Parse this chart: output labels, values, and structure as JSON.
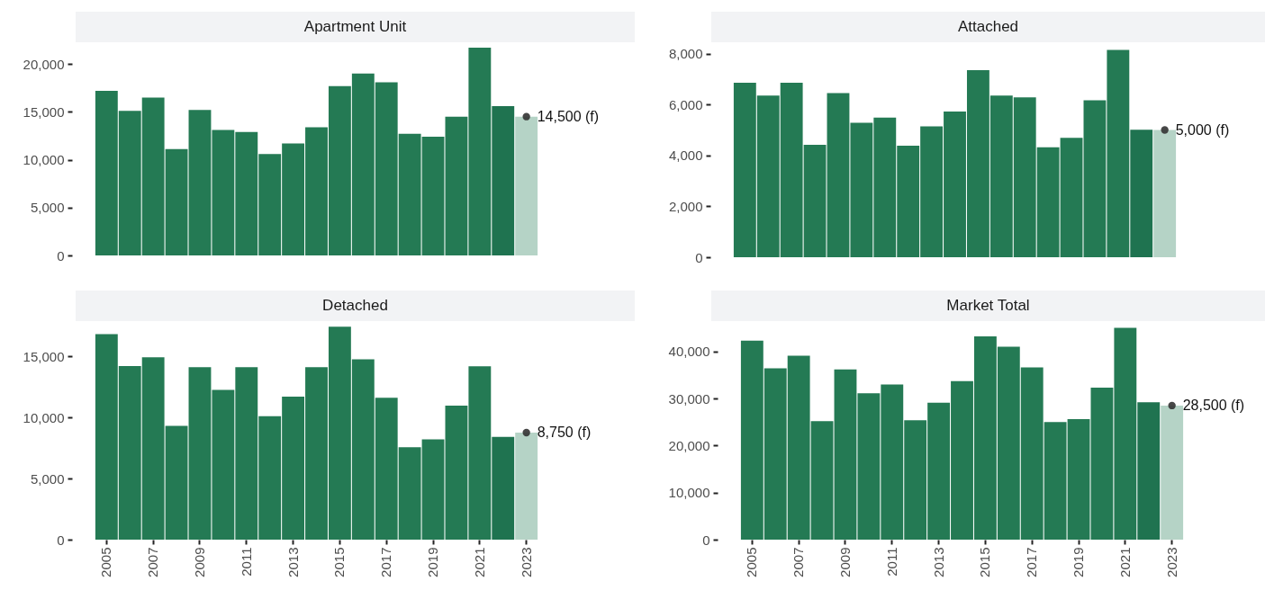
{
  "chart_data": [
    {
      "type": "bar",
      "title": "Apartment Unit",
      "categories": [
        "2005",
        null,
        "2007",
        null,
        "2009",
        null,
        "2011",
        null,
        "2013",
        null,
        "2015",
        null,
        "2017",
        null,
        "2019",
        null,
        "2021",
        null,
        "2023"
      ],
      "ylim": [
        0,
        21800
      ],
      "yticks": [
        {
          "value": 0,
          "label": "0"
        },
        {
          "value": 5000,
          "label": "5,000"
        },
        {
          "value": 10000,
          "label": "10,000"
        },
        {
          "value": 15000,
          "label": "15,000"
        },
        {
          "value": 20000,
          "label": "20,000"
        }
      ],
      "tick_labels": "y",
      "marker": "circle",
      "series": [
        {
          "colors": [
            "#247a54",
            "#247a54",
            "#247a54",
            "#247a54",
            "#247a54",
            "#247a54",
            "#247a54",
            "#247a54",
            "#247a54",
            "#247a54",
            "#247a54",
            "#247a54",
            "#247a54",
            "#247a54",
            "#247a54",
            "#247a54",
            "#247a54",
            "#1f7350",
            "#b5d3c6"
          ],
          "values": [
            17200,
            15100,
            16500,
            11100,
            15200,
            13100,
            12900,
            10600,
            11700,
            13400,
            17700,
            19000,
            18100,
            12700,
            12400,
            14500,
            21700,
            15600,
            14500
          ]
        },
        {
          "type": "scatter",
          "color": "#333333",
          "values": [
            null,
            null,
            null,
            null,
            null,
            null,
            null,
            null,
            null,
            null,
            null,
            null,
            null,
            null,
            null,
            null,
            null,
            null,
            14500
          ],
          "value_labels": [
            null,
            null,
            null,
            null,
            null,
            null,
            null,
            null,
            null,
            null,
            null,
            null,
            null,
            null,
            null,
            null,
            null,
            null,
            "14,500 (f)"
          ]
        }
      ]
    },
    {
      "type": "bar",
      "title": "Attached",
      "categories": [
        "2005",
        null,
        "2007",
        null,
        "2009",
        null,
        "2011",
        null,
        "2013",
        null,
        "2015",
        null,
        "2017",
        null,
        "2019",
        null,
        "2021",
        null,
        "2023"
      ],
      "ylim": [
        0,
        8200
      ],
      "yticks": [
        {
          "value": 0,
          "label": "0"
        },
        {
          "value": 2000,
          "label": "2,000"
        },
        {
          "value": 4000,
          "label": "4,000"
        },
        {
          "value": 6000,
          "label": "6,000"
        },
        {
          "value": 8000,
          "label": "8,000"
        }
      ],
      "tick_labels": "y",
      "marker": "circle",
      "series": [
        {
          "colors": [
            "#247a54",
            "#247a54",
            "#247a54",
            "#247a54",
            "#247a54",
            "#247a54",
            "#247a54",
            "#247a54",
            "#247a54",
            "#247a54",
            "#247a54",
            "#247a54",
            "#247a54",
            "#247a54",
            "#247a54",
            "#247a54",
            "#247a54",
            "#1f7350",
            "#b5d3c6"
          ],
          "values": [
            6860,
            6350,
            6860,
            4420,
            6450,
            5280,
            5490,
            4380,
            5140,
            5730,
            7350,
            6350,
            6280,
            4320,
            4690,
            6170,
            8150,
            5010,
            5000
          ]
        },
        {
          "type": "scatter",
          "color": "#333333",
          "values": [
            null,
            null,
            null,
            null,
            null,
            null,
            null,
            null,
            null,
            null,
            null,
            null,
            null,
            null,
            null,
            null,
            null,
            null,
            5000
          ],
          "value_labels": [
            null,
            null,
            null,
            null,
            null,
            null,
            null,
            null,
            null,
            null,
            null,
            null,
            null,
            null,
            null,
            null,
            null,
            null,
            "5,000 (f)"
          ]
        }
      ]
    },
    {
      "type": "bar",
      "title": "Detached",
      "categories": [
        "2005",
        null,
        "2007",
        null,
        "2009",
        null,
        "2011",
        null,
        "2013",
        null,
        "2015",
        null,
        "2017",
        null,
        "2019",
        null,
        "2021",
        null,
        "2023"
      ],
      "ylim": [
        0,
        17500
      ],
      "yticks": [
        {
          "value": 0,
          "label": "0"
        },
        {
          "value": 5000,
          "label": "5,000"
        },
        {
          "value": 10000,
          "label": "10,000"
        },
        {
          "value": 15000,
          "label": "15,000"
        }
      ],
      "marker": "circle",
      "series": [
        {
          "colors": [
            "#247a54",
            "#247a54",
            "#247a54",
            "#247a54",
            "#247a54",
            "#247a54",
            "#247a54",
            "#247a54",
            "#247a54",
            "#247a54",
            "#247a54",
            "#247a54",
            "#247a54",
            "#247a54",
            "#247a54",
            "#247a54",
            "#247a54",
            "#1f7350",
            "#b5d3c6"
          ],
          "values": [
            16800,
            14200,
            14900,
            9300,
            14100,
            12250,
            14100,
            10100,
            11700,
            14100,
            17400,
            14750,
            11600,
            7560,
            8200,
            10960,
            14170,
            8400,
            8750
          ]
        },
        {
          "type": "scatter",
          "color": "#333333",
          "values": [
            null,
            null,
            null,
            null,
            null,
            null,
            null,
            null,
            null,
            null,
            null,
            null,
            null,
            null,
            null,
            null,
            null,
            null,
            8750
          ],
          "value_labels": [
            null,
            null,
            null,
            null,
            null,
            null,
            null,
            null,
            null,
            null,
            null,
            null,
            null,
            null,
            null,
            null,
            null,
            null,
            "8,750 (f)"
          ]
        }
      ]
    },
    {
      "type": "bar",
      "title": "Market Total",
      "categories": [
        "2005",
        null,
        "2007",
        null,
        "2009",
        null,
        "2011",
        null,
        "2013",
        null,
        "2015",
        null,
        "2017",
        null,
        "2019",
        null,
        "2021",
        null,
        "2023"
      ],
      "ylim": [
        0,
        45500
      ],
      "yticks": [
        {
          "value": 0,
          "label": "0"
        },
        {
          "value": 10000,
          "label": "10,000"
        },
        {
          "value": 20000,
          "label": "20,000"
        },
        {
          "value": 30000,
          "label": "30,000"
        },
        {
          "value": 40000,
          "label": "40,000"
        }
      ],
      "marker": "circle",
      "series": [
        {
          "colors": [
            "#247a54",
            "#247a54",
            "#247a54",
            "#247a54",
            "#247a54",
            "#247a54",
            "#247a54",
            "#247a54",
            "#247a54",
            "#247a54",
            "#247a54",
            "#247a54",
            "#247a54",
            "#247a54",
            "#247a54",
            "#247a54",
            "#247a54",
            "#1f7350",
            "#b5d3c6"
          ],
          "values": [
            42300,
            36400,
            39100,
            25200,
            36200,
            31100,
            33000,
            25400,
            29100,
            33700,
            43200,
            41000,
            36600,
            25000,
            25600,
            32300,
            45000,
            29200,
            28500
          ]
        },
        {
          "type": "scatter",
          "color": "#333333",
          "values": [
            null,
            null,
            null,
            null,
            null,
            null,
            null,
            null,
            null,
            null,
            null,
            null,
            null,
            null,
            null,
            null,
            null,
            null,
            28500
          ],
          "value_labels": [
            null,
            null,
            null,
            null,
            null,
            null,
            null,
            null,
            null,
            null,
            null,
            null,
            null,
            null,
            null,
            null,
            null,
            null,
            "28,500 (f)"
          ]
        }
      ]
    }
  ]
}
